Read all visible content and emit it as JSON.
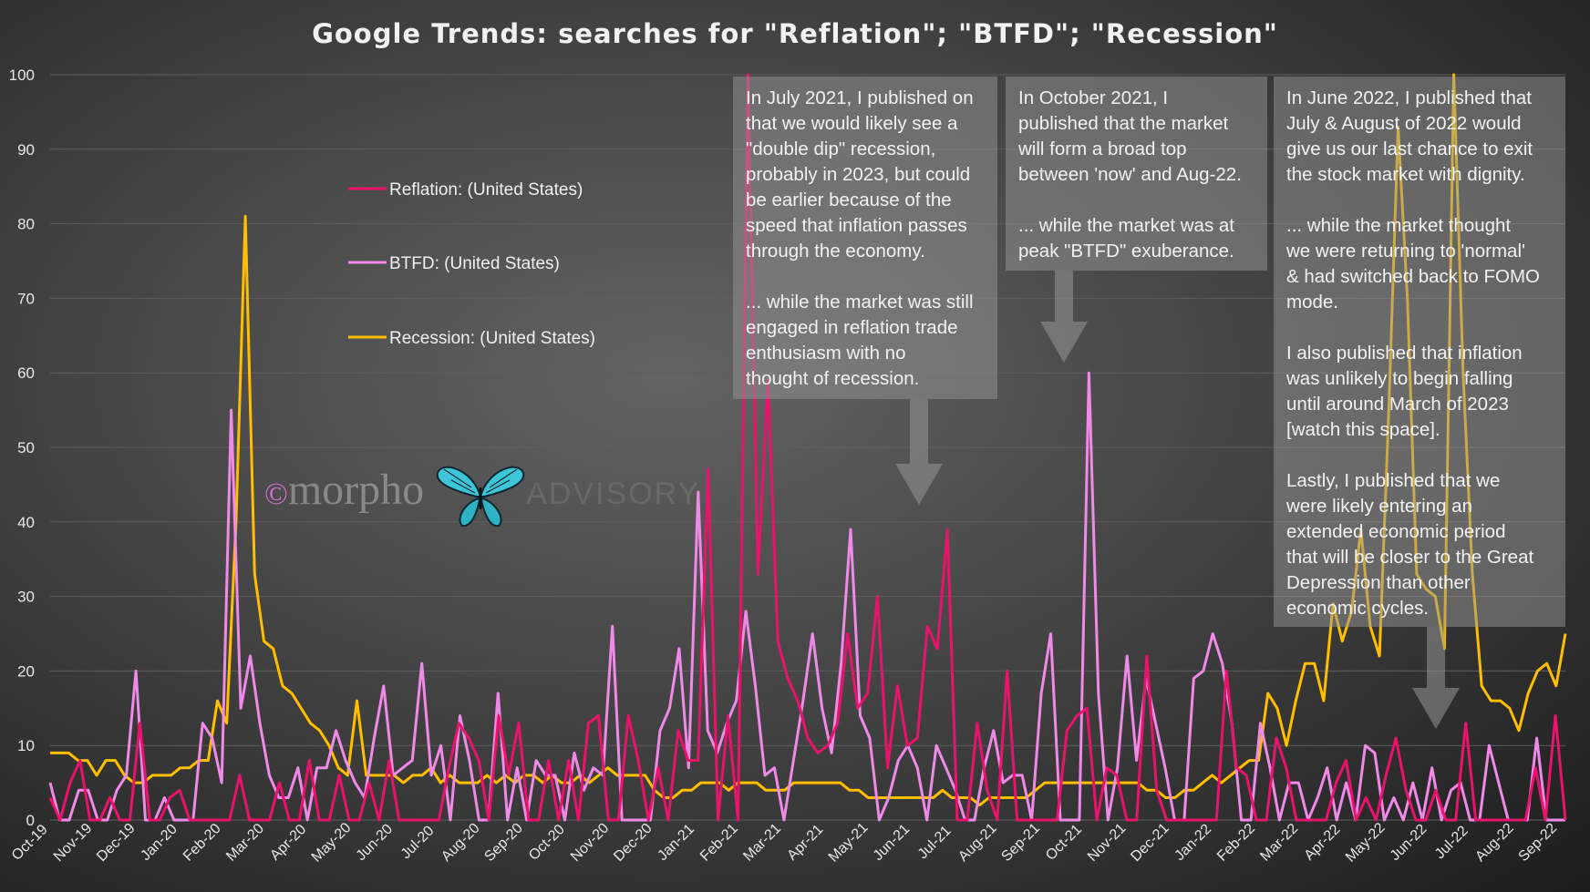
{
  "chart_data": {
    "type": "line",
    "title": "Google Trends: searches for \"Reflation\"; \"BTFD\"; \"Recession\"",
    "ylim": [
      0,
      100
    ],
    "yticks": [
      0,
      10,
      20,
      30,
      40,
      50,
      60,
      70,
      80,
      90,
      100
    ],
    "xtick_labels": [
      "Oct-19",
      "Nov-19",
      "Dec-19",
      "Jan-20",
      "Feb-20",
      "Mar-20",
      "Apr-20",
      "May-20",
      "Jun-20",
      "Jul-20",
      "Aug-20",
      "Sep-20",
      "Oct-20",
      "Nov-20",
      "Dec-20",
      "Jan-21",
      "Feb-21",
      "Mar-21",
      "Apr-21",
      "May-21",
      "Jun-21",
      "Jul-21",
      "Aug-21",
      "Sep-21",
      "Oct-21",
      "Nov-21",
      "Dec-21",
      "Jan-22",
      "Feb-22",
      "Mar-22",
      "Apr-22",
      "May-22",
      "Jun-22",
      "Jul-22",
      "Aug-22",
      "Sep-22"
    ],
    "grid": "horizontal",
    "legend_position": "upper-left",
    "series": [
      {
        "name": "Reflation: (United States)",
        "color": "#e8146c",
        "values": [
          3,
          0,
          5,
          8,
          0,
          0,
          3,
          0,
          0,
          13,
          0,
          0,
          3,
          4,
          0,
          0,
          0,
          0,
          0,
          6,
          0,
          0,
          0,
          5,
          0,
          0,
          8,
          0,
          0,
          6,
          0,
          0,
          5,
          0,
          8,
          0,
          0,
          0,
          0,
          0,
          7,
          13,
          11,
          8,
          0,
          14,
          6,
          13,
          0,
          0,
          8,
          0,
          8,
          0,
          13,
          14,
          0,
          0,
          14,
          8,
          0,
          7,
          0,
          12,
          8,
          8,
          47,
          0,
          14,
          0,
          100,
          33,
          59,
          24,
          19,
          16,
          11,
          9,
          10,
          13,
          25,
          15,
          17,
          30,
          7,
          18,
          10,
          11,
          26,
          23,
          39,
          0,
          0,
          13,
          4,
          0,
          20,
          0,
          0,
          0,
          0,
          0,
          12,
          14,
          15,
          0,
          7,
          6,
          0,
          0,
          22,
          4,
          0,
          0,
          0,
          0,
          0,
          0,
          20,
          7,
          6,
          0,
          0,
          11,
          7,
          0,
          0,
          0,
          0,
          5,
          8,
          0,
          3,
          0,
          6,
          11,
          4,
          0,
          0,
          4,
          0,
          0,
          13,
          0,
          0,
          0,
          0,
          0,
          0,
          7,
          0,
          14,
          0
        ]
      },
      {
        "name": "BTFD: (United States)",
        "color": "#f08ae8",
        "values": [
          5,
          0,
          0,
          4,
          4,
          0,
          0,
          4,
          6,
          20,
          0,
          0,
          3,
          0,
          0,
          0,
          13,
          11,
          5,
          55,
          15,
          22,
          13,
          6,
          3,
          3,
          7,
          0,
          7,
          7,
          12,
          8,
          5,
          3,
          11,
          18,
          6,
          7,
          8,
          21,
          6,
          10,
          0,
          14,
          8,
          0,
          0,
          17,
          0,
          7,
          0,
          8,
          6,
          6,
          0,
          9,
          4,
          7,
          6,
          26,
          0,
          0,
          0,
          0,
          12,
          15,
          23,
          7,
          44,
          12,
          9,
          13,
          16,
          28,
          18,
          6,
          7,
          0,
          8,
          16,
          25,
          15,
          9,
          21,
          39,
          14,
          11,
          0,
          3,
          8,
          10,
          7,
          0,
          10,
          7,
          4,
          0,
          0,
          7,
          12,
          5,
          6,
          6,
          0,
          17,
          25,
          0,
          0,
          0,
          60,
          17,
          0,
          7,
          22,
          8,
          19,
          13,
          7,
          0,
          0,
          19,
          20,
          25,
          21,
          13,
          0,
          0,
          13,
          7,
          0,
          5,
          5,
          0,
          3,
          7,
          0,
          5,
          0,
          10,
          9,
          0,
          3,
          0,
          5,
          0,
          7,
          0,
          4,
          5,
          0,
          0,
          10,
          5,
          0,
          0,
          0,
          11,
          0,
          0,
          0
        ]
      },
      {
        "name": "Recession: (United States)",
        "color": "#ffbf00",
        "values": [
          9,
          9,
          9,
          8,
          8,
          6,
          8,
          8,
          6,
          5,
          5,
          6,
          6,
          6,
          7,
          7,
          8,
          8,
          16,
          13,
          40,
          81,
          33,
          24,
          23,
          18,
          17,
          15,
          13,
          12,
          10,
          7,
          6,
          16,
          6,
          6,
          6,
          6,
          5,
          6,
          6,
          7,
          5,
          6,
          5,
          5,
          5,
          6,
          5,
          6,
          5,
          6,
          6,
          5,
          6,
          5,
          5,
          6,
          5,
          6,
          7,
          6,
          6,
          6,
          6,
          4,
          3,
          3,
          4,
          4,
          5,
          5,
          5,
          4,
          5,
          5,
          5,
          4,
          4,
          4,
          5,
          5,
          5,
          5,
          5,
          5,
          4,
          4,
          3,
          3,
          3,
          3,
          3,
          3,
          3,
          3,
          4,
          3,
          3,
          3,
          2,
          3,
          3,
          3,
          3,
          3,
          4,
          5,
          5,
          5,
          5,
          5,
          5,
          5,
          5,
          5,
          5,
          5,
          4,
          4,
          3,
          3,
          4,
          4,
          5,
          6,
          5,
          6,
          7,
          8,
          8,
          17,
          15,
          10,
          16,
          21,
          21,
          16,
          29,
          24,
          28,
          39,
          26,
          22,
          55,
          93,
          70,
          33,
          31,
          30,
          23,
          100,
          60,
          33,
          18,
          16,
          16,
          15,
          12,
          17,
          20,
          21,
          18,
          25
        ]
      }
    ]
  },
  "legend": [
    {
      "label": "Reflation: (United States)",
      "color": "#e8146c"
    },
    {
      "label": "BTFD: (United States)",
      "color": "#f08ae8"
    },
    {
      "label": "Recession: (United States)",
      "color": "#ffbf00"
    }
  ],
  "annotations": [
    {
      "text": "In July 2021, I published on\nthat we would likely see a\n\"double dip\" recession,\nprobably in 2023, but could\nbe earlier because of the\nspeed that inflation passes\nthrough the economy.\n\n... while the market was still\nengaged in reflation trade\nenthusiasm with no\nthought of recession."
    },
    {
      "text": "In October 2021, I\npublished that the market\nwill form a broad top\nbetween 'now' and Aug-22.\n\n... while the market was at\npeak \"BTFD\" exuberance."
    },
    {
      "text": "In June 2022, I published that\nJuly & August of 2022 would\ngive us our last chance to exit\nthe stock market with dignity.\n\n... while the market thought\nwe were returning to 'normal'\n& had switched back to FOMO\nmode.\n\nI also published that inflation\nwas unlikely to begin falling\nuntil around March of 2023\n[watch this space].\n\nLastly, I published that we\nwere likely entering an\nextended economic period\nthat will be closer to the Great\nDepression than other\neconomic cycles."
    }
  ],
  "watermark": {
    "copyright": "©",
    "brand": "morpho",
    "suffix": "ADVISORY"
  }
}
